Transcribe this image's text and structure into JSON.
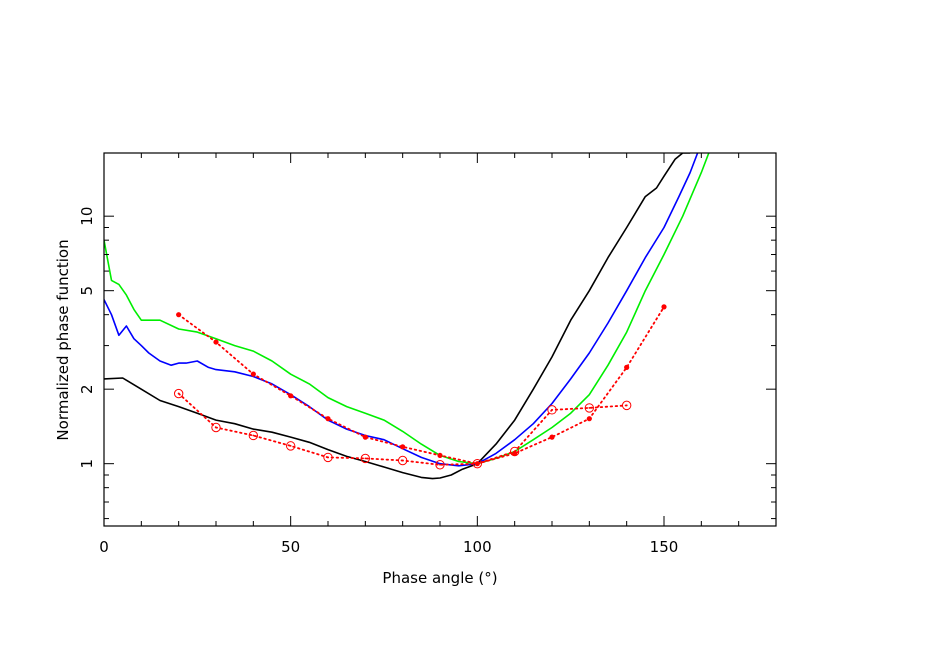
{
  "chart_data": {
    "type": "line",
    "title": "",
    "xlabel": "Phase angle (°)",
    "ylabel": "Normalized phase function",
    "xlim": [
      0,
      180
    ],
    "ylim": [
      0.56,
      18.0
    ],
    "yscale": "log",
    "grid": false,
    "x_ticks": [
      {
        "value": 0,
        "label": "0"
      },
      {
        "value": 50,
        "label": "50"
      },
      {
        "value": 100,
        "label": "100"
      },
      {
        "value": 150,
        "label": "150"
      }
    ],
    "y_ticks": [
      {
        "value": 1,
        "label": "1"
      },
      {
        "value": 2,
        "label": "2"
      },
      {
        "value": 5,
        "label": "5"
      },
      {
        "value": 10,
        "label": "10"
      }
    ],
    "series": [
      {
        "color": "#000000",
        "style": "solid",
        "x": [
          0,
          5,
          10,
          15,
          20,
          25,
          30,
          35,
          40,
          45,
          50,
          55,
          60,
          65,
          70,
          75,
          80,
          85,
          88,
          90,
          93,
          96,
          100,
          105,
          110,
          115,
          120,
          125,
          130,
          135,
          140,
          145,
          148,
          150,
          153,
          155,
          157
        ],
        "y": [
          2.2,
          2.22,
          2.0,
          1.8,
          1.7,
          1.6,
          1.5,
          1.45,
          1.38,
          1.34,
          1.28,
          1.22,
          1.14,
          1.07,
          1.02,
          0.97,
          0.92,
          0.88,
          0.87,
          0.875,
          0.9,
          0.95,
          1.0,
          1.2,
          1.5,
          2.0,
          2.7,
          3.8,
          5.0,
          6.8,
          9.0,
          12.0,
          13.0,
          14.5,
          17.0,
          18.0,
          18.0
        ]
      },
      {
        "color": "#0000ff",
        "style": "solid",
        "x": [
          0,
          2,
          4,
          6,
          8,
          10,
          12,
          15,
          18,
          20,
          22,
          25,
          28,
          30,
          35,
          40,
          45,
          50,
          55,
          60,
          65,
          70,
          75,
          80,
          85,
          90,
          95,
          100,
          105,
          110,
          115,
          120,
          125,
          130,
          135,
          140,
          145,
          150,
          154,
          157,
          159
        ],
        "y": [
          4.6,
          4.0,
          3.3,
          3.6,
          3.2,
          3.0,
          2.8,
          2.6,
          2.5,
          2.55,
          2.55,
          2.6,
          2.45,
          2.4,
          2.35,
          2.25,
          2.1,
          1.9,
          1.7,
          1.5,
          1.38,
          1.3,
          1.25,
          1.15,
          1.06,
          1.0,
          0.98,
          1.0,
          1.1,
          1.25,
          1.45,
          1.75,
          2.2,
          2.8,
          3.7,
          5.0,
          6.8,
          9.0,
          12.0,
          15.0,
          18.0
        ]
      },
      {
        "color": "#00ee00",
        "style": "solid",
        "x": [
          0,
          2,
          4,
          6,
          8,
          10,
          15,
          20,
          25,
          30,
          35,
          40,
          45,
          50,
          55,
          60,
          65,
          70,
          75,
          80,
          85,
          90,
          95,
          100,
          105,
          110,
          115,
          120,
          125,
          130,
          135,
          140,
          145,
          150,
          155,
          160,
          162
        ],
        "y": [
          8.0,
          5.5,
          5.3,
          4.8,
          4.2,
          3.8,
          3.8,
          3.5,
          3.4,
          3.2,
          3.0,
          2.85,
          2.6,
          2.3,
          2.1,
          1.85,
          1.7,
          1.6,
          1.5,
          1.35,
          1.2,
          1.08,
          1.02,
          1.0,
          1.05,
          1.12,
          1.25,
          1.4,
          1.6,
          1.9,
          2.5,
          3.4,
          5.0,
          7.0,
          10.0,
          15.0,
          18.0
        ]
      },
      {
        "color": "#ff0000",
        "style": "dotted",
        "marker": "filled-circle",
        "x": [
          20,
          30,
          40,
          50,
          60,
          70,
          80,
          90,
          100,
          110,
          120,
          130,
          140,
          150
        ],
        "y": [
          4.0,
          3.1,
          2.3,
          1.88,
          1.52,
          1.28,
          1.17,
          1.08,
          1.0,
          1.1,
          1.28,
          1.52,
          2.45,
          4.3
        ]
      },
      {
        "color": "#ff0000",
        "style": "dotted",
        "marker": "open-circle",
        "x": [
          20,
          30,
          40,
          50,
          60,
          70,
          80,
          90,
          100,
          110,
          120,
          130,
          140
        ],
        "y": [
          1.92,
          1.4,
          1.3,
          1.18,
          1.06,
          1.05,
          1.03,
          0.99,
          1.0,
          1.12,
          1.65,
          1.68,
          1.72
        ]
      }
    ]
  }
}
